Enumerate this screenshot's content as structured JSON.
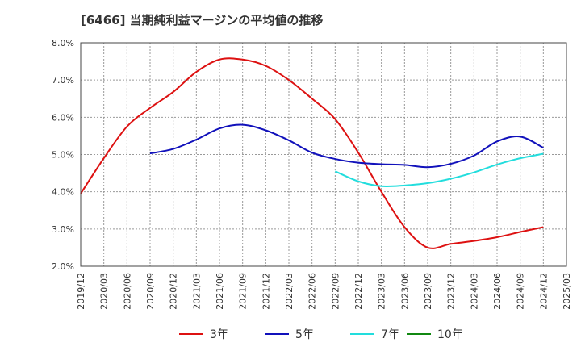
{
  "chart_data": {
    "type": "line",
    "title": "[6466]  当期純利益マージンの平均値の推移",
    "xlabel": "",
    "ylabel": "",
    "ylim": [
      2.0,
      8.0
    ],
    "yticks": [
      "2.0%",
      "3.0%",
      "4.0%",
      "5.0%",
      "6.0%",
      "7.0%",
      "8.0%"
    ],
    "xticks": [
      "2019/12",
      "2020/03",
      "2020/06",
      "2020/09",
      "2020/12",
      "2021/03",
      "2021/06",
      "2021/09",
      "2021/12",
      "2022/03",
      "2022/06",
      "2022/09",
      "2022/12",
      "2023/03",
      "2023/06",
      "2023/09",
      "2023/12",
      "2024/03",
      "2024/06",
      "2024/09",
      "2024/12",
      "2025/03"
    ],
    "grid": true,
    "legend_position": "bottom",
    "series": [
      {
        "name": "3年",
        "color": "#dd1111",
        "points": [
          [
            "2019/12",
            3.95
          ],
          [
            "2020/03",
            4.9
          ],
          [
            "2020/06",
            5.75
          ],
          [
            "2020/09",
            6.25
          ],
          [
            "2020/12",
            6.68
          ],
          [
            "2021/03",
            7.22
          ],
          [
            "2021/06",
            7.55
          ],
          [
            "2021/09",
            7.55
          ],
          [
            "2021/12",
            7.38
          ],
          [
            "2022/03",
            7.0
          ],
          [
            "2022/06",
            6.5
          ],
          [
            "2022/09",
            5.95
          ],
          [
            "2022/12",
            5.05
          ],
          [
            "2023/03",
            4.0
          ],
          [
            "2023/06",
            3.05
          ],
          [
            "2023/09",
            2.5
          ],
          [
            "2023/12",
            2.6
          ],
          [
            "2024/03",
            2.68
          ],
          [
            "2024/06",
            2.78
          ],
          [
            "2024/09",
            2.92
          ],
          [
            "2024/12",
            3.05
          ]
        ]
      },
      {
        "name": "5年",
        "color": "#1111bb",
        "points": [
          [
            "2020/09",
            5.03
          ],
          [
            "2020/12",
            5.15
          ],
          [
            "2021/03",
            5.4
          ],
          [
            "2021/06",
            5.7
          ],
          [
            "2021/09",
            5.8
          ],
          [
            "2021/12",
            5.65
          ],
          [
            "2022/03",
            5.38
          ],
          [
            "2022/06",
            5.05
          ],
          [
            "2022/09",
            4.88
          ],
          [
            "2022/12",
            4.78
          ],
          [
            "2023/03",
            4.74
          ],
          [
            "2023/06",
            4.72
          ],
          [
            "2023/09",
            4.66
          ],
          [
            "2023/12",
            4.75
          ],
          [
            "2024/03",
            4.97
          ],
          [
            "2024/06",
            5.35
          ],
          [
            "2024/09",
            5.48
          ],
          [
            "2024/12",
            5.18
          ]
        ]
      },
      {
        "name": "7年",
        "color": "#22dddd",
        "points": [
          [
            "2022/09",
            4.55
          ],
          [
            "2022/12",
            4.28
          ],
          [
            "2023/03",
            4.15
          ],
          [
            "2023/06",
            4.17
          ],
          [
            "2023/09",
            4.23
          ],
          [
            "2023/12",
            4.35
          ],
          [
            "2024/03",
            4.52
          ],
          [
            "2024/06",
            4.73
          ],
          [
            "2024/09",
            4.9
          ],
          [
            "2024/12",
            5.02
          ]
        ]
      },
      {
        "name": "10年",
        "color": "#118811",
        "points": []
      }
    ]
  }
}
